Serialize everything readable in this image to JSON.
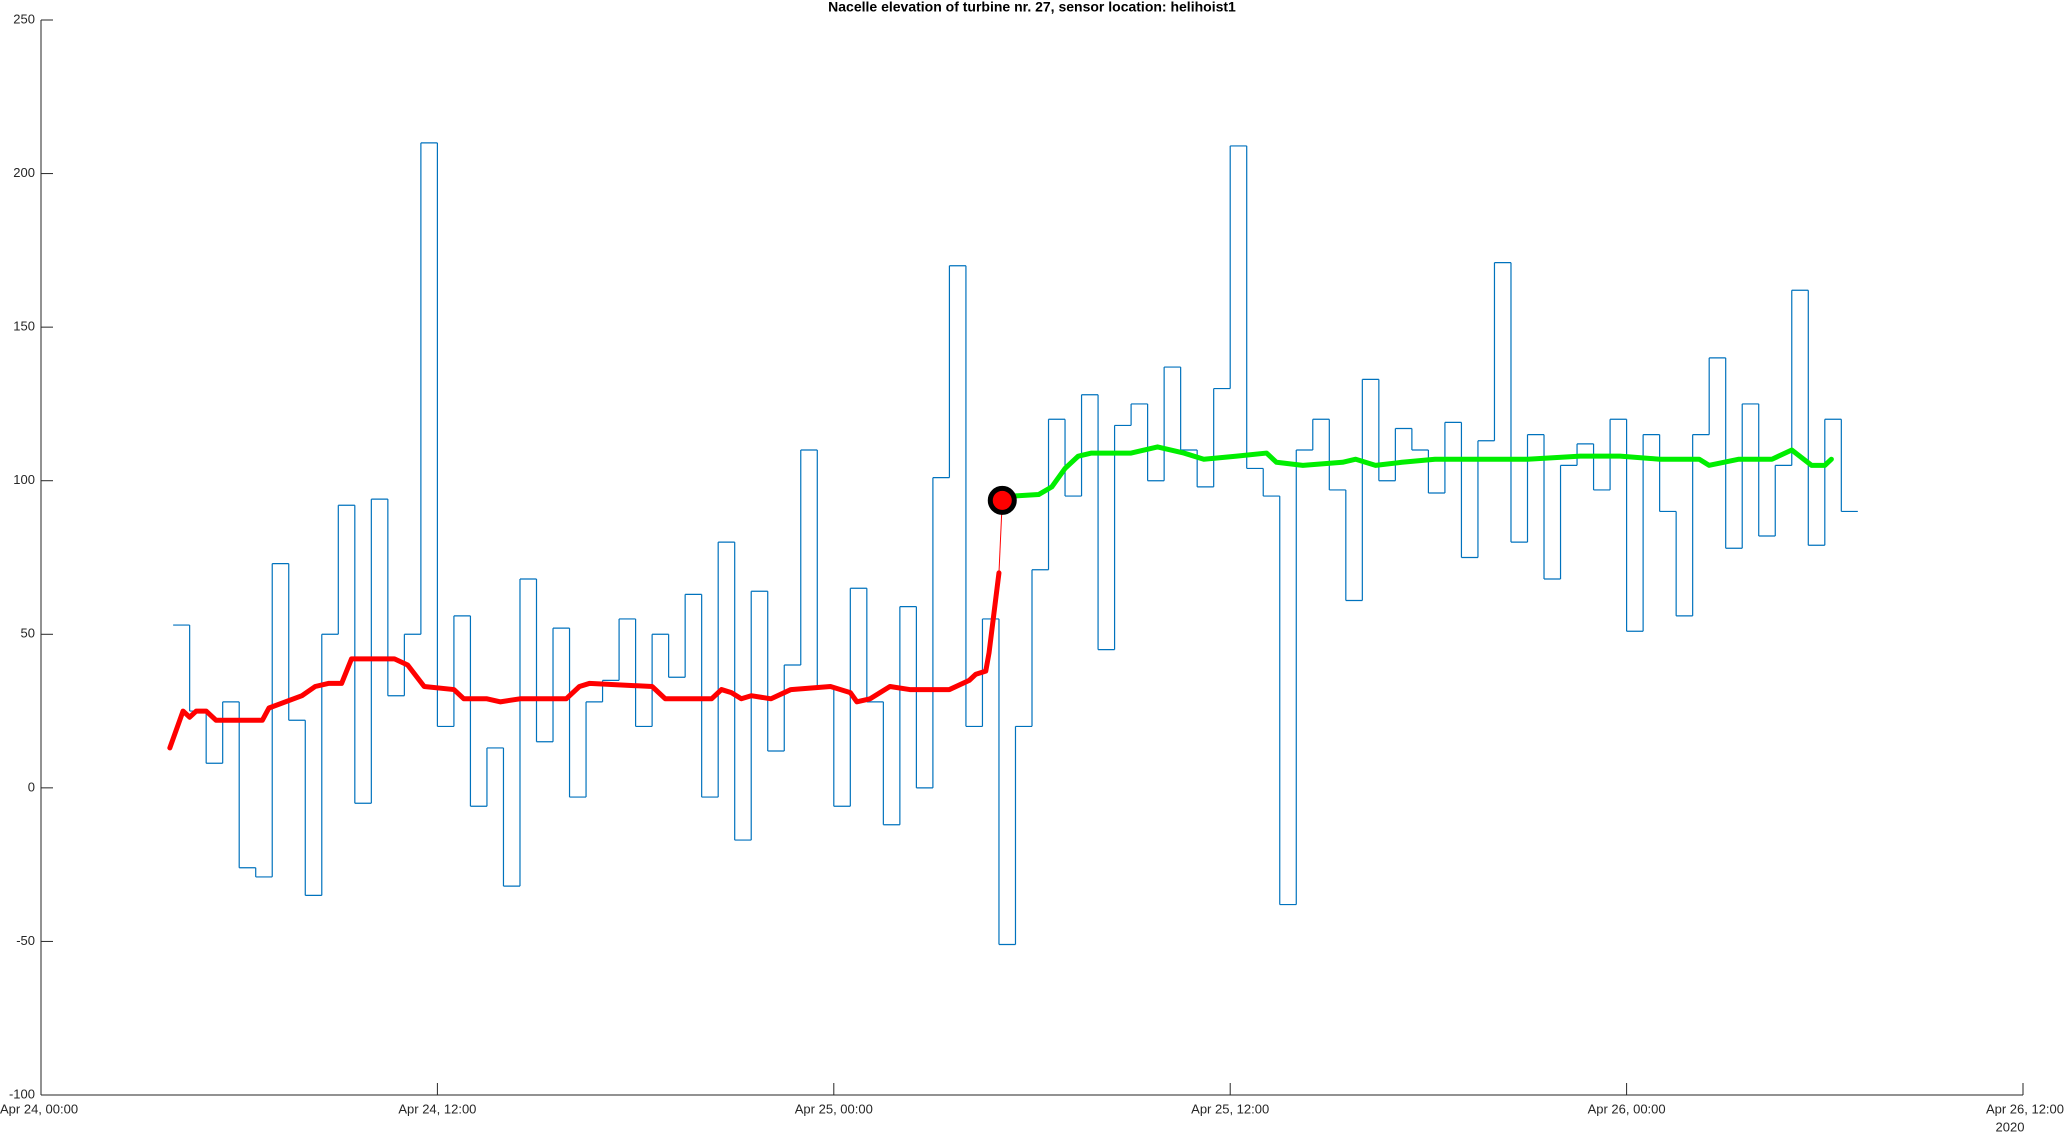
{
  "chart_data": {
    "type": "line",
    "title": "Nacelle elevation of turbine nr. 27, sensor location: helihoist1",
    "annotation": "2020",
    "xlim": [
      0,
      60
    ],
    "xticks": [
      {
        "value": 0,
        "label": "Apr 24, 00:00"
      },
      {
        "value": 12,
        "label": "Apr 24, 12:00"
      },
      {
        "value": 24,
        "label": "Apr 25, 00:00"
      },
      {
        "value": 36,
        "label": "Apr 25, 12:00"
      },
      {
        "value": 48,
        "label": "Apr 26, 00:00"
      },
      {
        "value": 60,
        "label": "Apr 26, 12:00"
      }
    ],
    "ylim": [
      -100,
      250
    ],
    "yticks": [
      -100,
      -50,
      0,
      50,
      100,
      150,
      200,
      250
    ],
    "series": [
      {
        "style": "step",
        "color": "#0072bd",
        "width": 1.2,
        "x": [
          4.0,
          4.5,
          5.0,
          5.5,
          6.0,
          6.5,
          7.0,
          7.5,
          8.0,
          8.5,
          9.0,
          9.5,
          10.0,
          10.5,
          11.0,
          11.5,
          12.0,
          12.5,
          13.0,
          13.5,
          14.0,
          14.5,
          15.0,
          15.5,
          16.0,
          16.5,
          17.0,
          17.5,
          18.0,
          18.5,
          19.0,
          19.5,
          20.0,
          20.5,
          21.0,
          21.5,
          22.0,
          22.5,
          23.0,
          23.5,
          24.0,
          24.5,
          25.0,
          25.5,
          26.0,
          26.5,
          27.0,
          27.5,
          28.0,
          28.5,
          29.0,
          29.5,
          30.0,
          30.5,
          31.0,
          31.5,
          32.0,
          32.5,
          33.0,
          33.5,
          34.0,
          34.5,
          35.0,
          35.5,
          36.0,
          36.5,
          37.0,
          37.5,
          38.0,
          38.5,
          39.0,
          39.5,
          40.0,
          40.5,
          41.0,
          41.5,
          42.0,
          42.5,
          43.0,
          43.5,
          44.0,
          44.5,
          45.0,
          45.5,
          46.0,
          46.5,
          47.0,
          47.5,
          48.0,
          48.5,
          49.0,
          49.5,
          50.0,
          50.5,
          51.0,
          51.5,
          52.0,
          52.5,
          53.0,
          53.5,
          54.0,
          54.5
        ],
        "values": [
          53,
          25,
          8,
          28,
          -26,
          -29,
          73,
          22,
          -35,
          50,
          92,
          -5,
          94,
          30,
          50,
          210,
          20,
          56,
          -6,
          13,
          -32,
          68,
          15,
          52,
          -3,
          28,
          35,
          55,
          20,
          50,
          36,
          63,
          -3,
          80,
          -17,
          64,
          12,
          40,
          110,
          33,
          -6,
          65,
          28,
          -12,
          59,
          0,
          101,
          170,
          20,
          55,
          -51,
          20,
          71,
          120,
          95,
          128,
          45,
          118,
          125,
          100,
          137,
          110,
          98,
          130,
          209,
          104,
          95,
          -38,
          110,
          120,
          97,
          61,
          133,
          100,
          117,
          110,
          96,
          119,
          75,
          113,
          171,
          80,
          115,
          68,
          105,
          112,
          97,
          120,
          51,
          115,
          90,
          56,
          115,
          140,
          78,
          125,
          82,
          105,
          162,
          79,
          120,
          90
        ]
      },
      {
        "style": "line",
        "color": "#ff0000",
        "width": 5,
        "x": [
          3.9,
          4.3,
          4.5,
          4.7,
          5.0,
          5.3,
          6.7,
          6.9,
          7.9,
          8.3,
          8.7,
          9.1,
          9.4,
          10.7,
          11.1,
          11.6,
          12.5,
          12.8,
          13.5,
          13.9,
          14.5,
          15.5,
          15.9,
          16.3,
          16.6,
          18.5,
          18.9,
          19.7,
          20.3,
          20.6,
          20.9,
          21.2,
          21.5,
          22.1,
          22.7,
          23.9,
          24.5,
          24.7,
          25.1,
          25.7,
          26.3,
          27.5,
          28.1,
          28.3,
          28.6,
          28.7,
          29.0
        ],
        "values": [
          13,
          25,
          23,
          25,
          25,
          22,
          22,
          26,
          30,
          33,
          34,
          34,
          42,
          42,
          40,
          33,
          32,
          29,
          29,
          28,
          29,
          29,
          29,
          33,
          34,
          33,
          29,
          29,
          29,
          32,
          31,
          29,
          30,
          29,
          32,
          33,
          31,
          28,
          29,
          33,
          32,
          32,
          35,
          37,
          38,
          44,
          70
        ]
      },
      {
        "style": "line",
        "color": "#00ee00",
        "width": 5,
        "x": [
          29.4,
          30.2,
          30.6,
          31.0,
          31.4,
          31.8,
          32.4,
          33.0,
          33.8,
          34.6,
          35.2,
          36.2,
          37.1,
          37.4,
          38.2,
          39.4,
          39.8,
          40.4,
          41.2,
          42.2,
          43.8,
          45.0,
          46.6,
          47.8,
          49.0,
          50.2,
          50.5,
          51.4,
          52.4,
          53.0,
          53.6,
          54.0,
          54.2
        ],
        "values": [
          95,
          95.5,
          98,
          104,
          108,
          109,
          109,
          109,
          111,
          109,
          107,
          108,
          109,
          106,
          105,
          106,
          107,
          105,
          106,
          107,
          107,
          107,
          108,
          108,
          107,
          107,
          105,
          107,
          107,
          110,
          105,
          105,
          107
        ]
      }
    ],
    "marker": {
      "x": 29.1,
      "y": 93.6,
      "color": "#ff0000",
      "edge": "#000000"
    }
  }
}
